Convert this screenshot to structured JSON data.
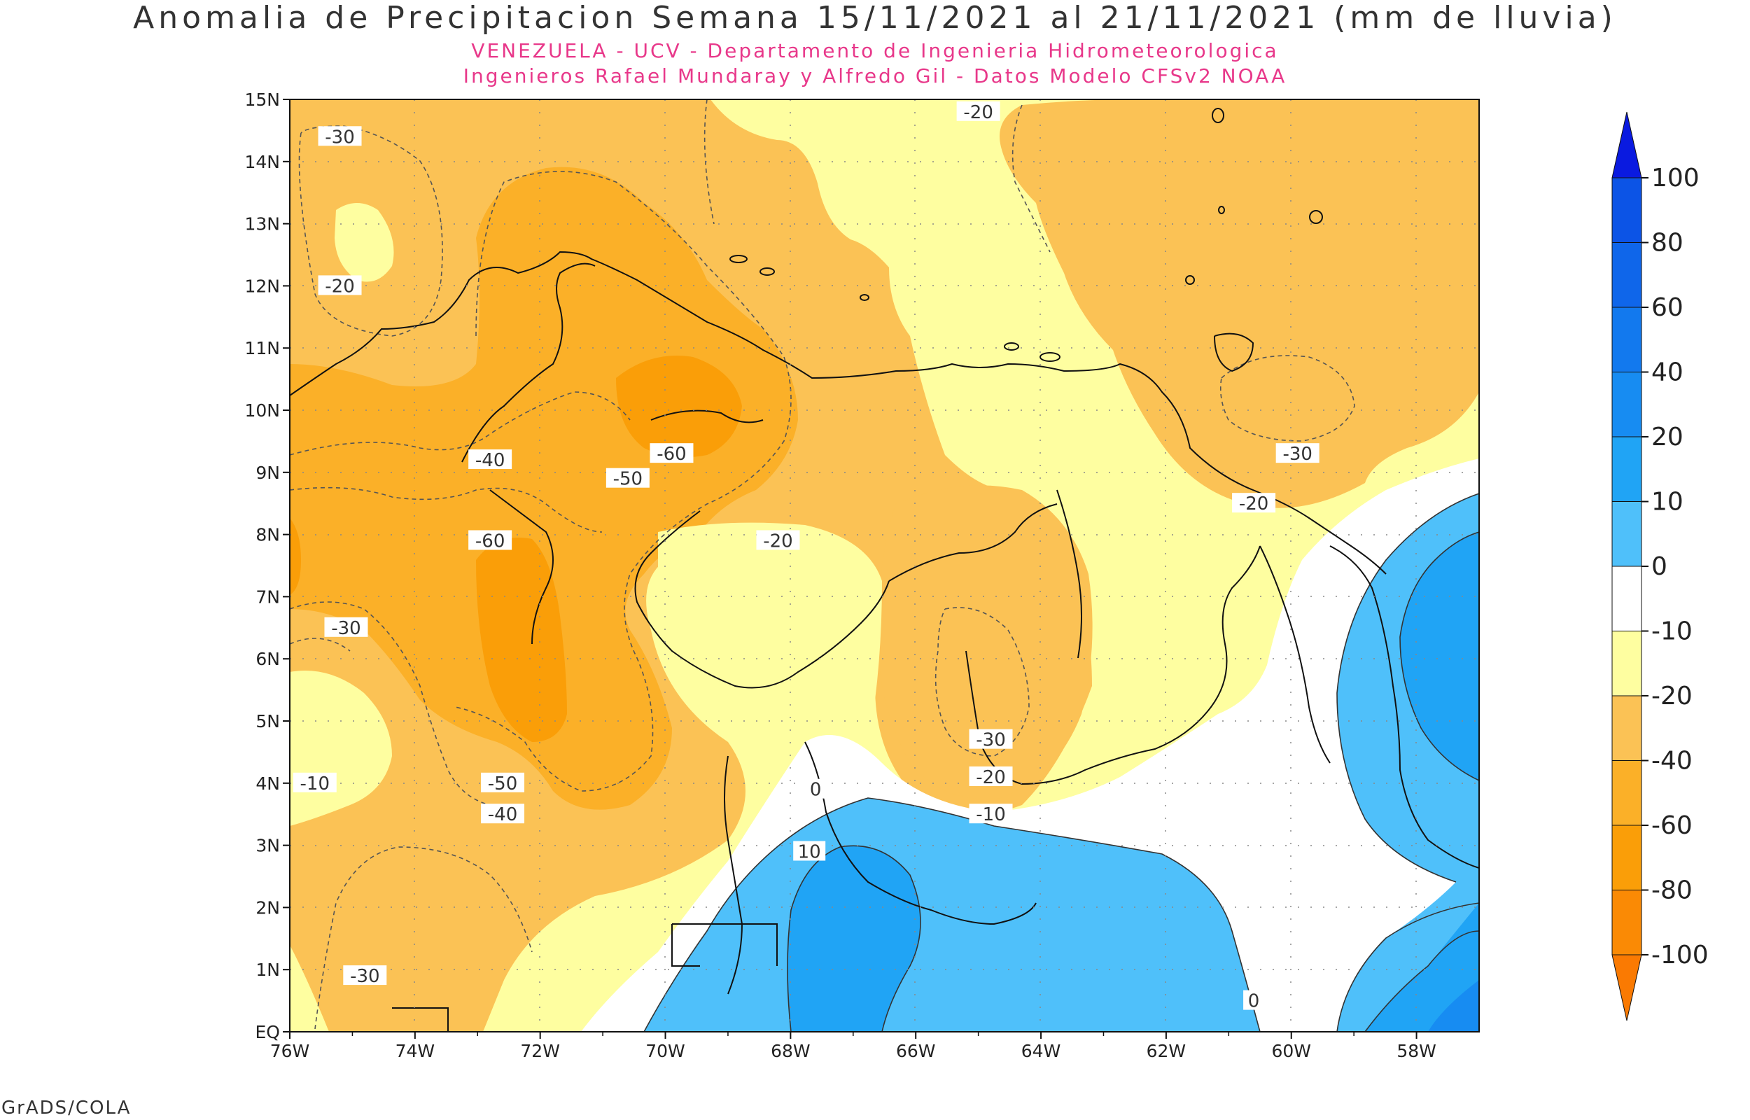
{
  "header": {
    "title": "Anomalia de Precipitacion Semana 15/11/2021 al 21/11/2021 (mm de lluvia)",
    "subtitle_1": "VENEZUELA - UCV - Departamento de Ingenieria Hidrometeorologica",
    "subtitle_2": "Ingenieros Rafael Mundaray y Alfredo Gil - Datos Modelo CFSv2 NOAA"
  },
  "footer": {
    "credit": "GrADS/COLA"
  },
  "map": {
    "lon_range": [
      -76,
      -57
    ],
    "lat_range": [
      0,
      15
    ],
    "lon_ticks": [
      "76W",
      "74W",
      "72W",
      "70W",
      "68W",
      "66W",
      "64W",
      "62W",
      "60W",
      "58W"
    ],
    "lat_ticks": [
      "EQ",
      "1N",
      "2N",
      "3N",
      "4N",
      "5N",
      "6N",
      "7N",
      "8N",
      "9N",
      "10N",
      "11N",
      "12N",
      "13N",
      "14N",
      "15N"
    ],
    "contour_labels": [
      {
        "text": "-30",
        "lon": -75.2,
        "lat": 14.4
      },
      {
        "text": "-20",
        "lon": -75.2,
        "lat": 12.0
      },
      {
        "text": "-20",
        "lon": -65.0,
        "lat": 14.8
      },
      {
        "text": "-40",
        "lon": -72.8,
        "lat": 9.2
      },
      {
        "text": "-50",
        "lon": -70.6,
        "lat": 8.9
      },
      {
        "text": "-60",
        "lon": -69.9,
        "lat": 9.3
      },
      {
        "text": "-60",
        "lon": -72.8,
        "lat": 7.9
      },
      {
        "text": "-20",
        "lon": -68.2,
        "lat": 7.9
      },
      {
        "text": "-30",
        "lon": -75.1,
        "lat": 6.5
      },
      {
        "text": "-10",
        "lon": -75.6,
        "lat": 4.0
      },
      {
        "text": "-50",
        "lon": -72.6,
        "lat": 4.0
      },
      {
        "text": "-40",
        "lon": -72.6,
        "lat": 3.5
      },
      {
        "text": "-30",
        "lon": -74.8,
        "lat": 0.9
      },
      {
        "text": "-30",
        "lon": -64.8,
        "lat": 4.7
      },
      {
        "text": "-20",
        "lon": -64.8,
        "lat": 4.1
      },
      {
        "text": "-10",
        "lon": -64.8,
        "lat": 3.5
      },
      {
        "text": "0",
        "lon": -67.6,
        "lat": 3.9
      },
      {
        "text": "10",
        "lon": -67.7,
        "lat": 2.9
      },
      {
        "text": "0",
        "lon": -60.6,
        "lat": 0.5
      },
      {
        "text": "-30",
        "lon": -59.9,
        "lat": 9.3
      },
      {
        "text": "-20",
        "lon": -60.6,
        "lat": 8.5
      }
    ]
  },
  "colorbar": {
    "labels": [
      "100",
      "80",
      "60",
      "40",
      "20",
      "10",
      "0",
      "-10",
      "-20",
      "-40",
      "-60",
      "-80",
      "-100"
    ],
    "colors": {
      "top_arrow": "#0a1ae0",
      "band_80_100": "#0c54e6",
      "band_60_80": "#0f66ea",
      "band_40_60": "#1279ee",
      "band_20_40": "#178cf2",
      "band_10_20": "#20a4f5",
      "band_0_10": "#4fc0fa",
      "band_-10_0": "#ffffff",
      "band_-20_-10": "#fefea0",
      "band_-40_-20": "#fbc255",
      "band_-60_-40": "#fbb028",
      "band_-80_-60": "#fa9e08",
      "band_-100_-80": "#fa8a05",
      "bottom_arrow": "#fa7a02"
    }
  }
}
